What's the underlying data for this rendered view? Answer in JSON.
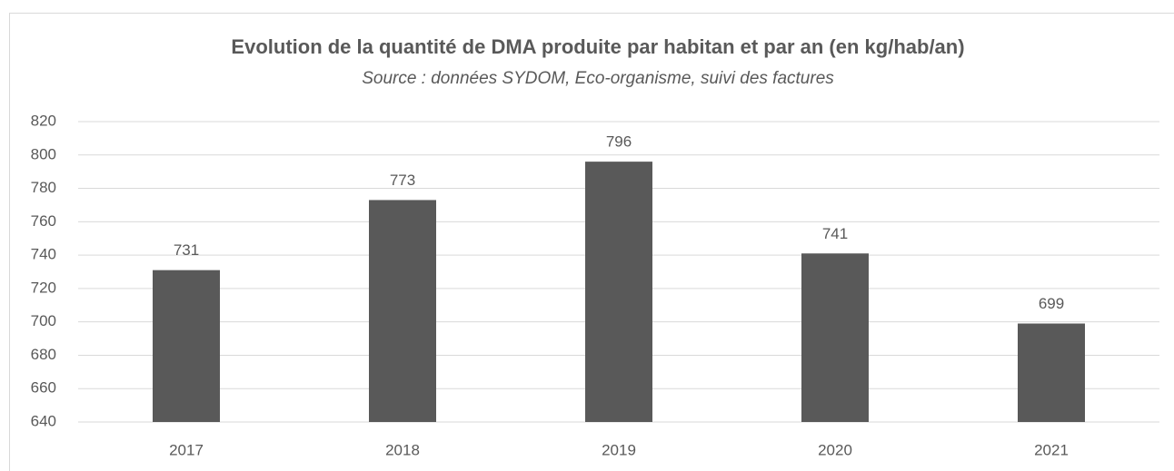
{
  "chart_data": {
    "type": "bar",
    "title": "Evolution de la quantité de DMA produite par habitan et par an  (en kg/hab/an)",
    "subtitle": "Source : données SYDOM, Eco-organisme, suivi des factures",
    "categories": [
      "2017",
      "2018",
      "2019",
      "2020",
      "2021"
    ],
    "values": [
      731,
      773,
      796,
      741,
      699
    ],
    "color": "#595959",
    "ylim": [
      640,
      820
    ],
    "yticks": [
      640,
      660,
      680,
      700,
      720,
      740,
      760,
      780,
      800,
      820
    ],
    "grid": true
  }
}
